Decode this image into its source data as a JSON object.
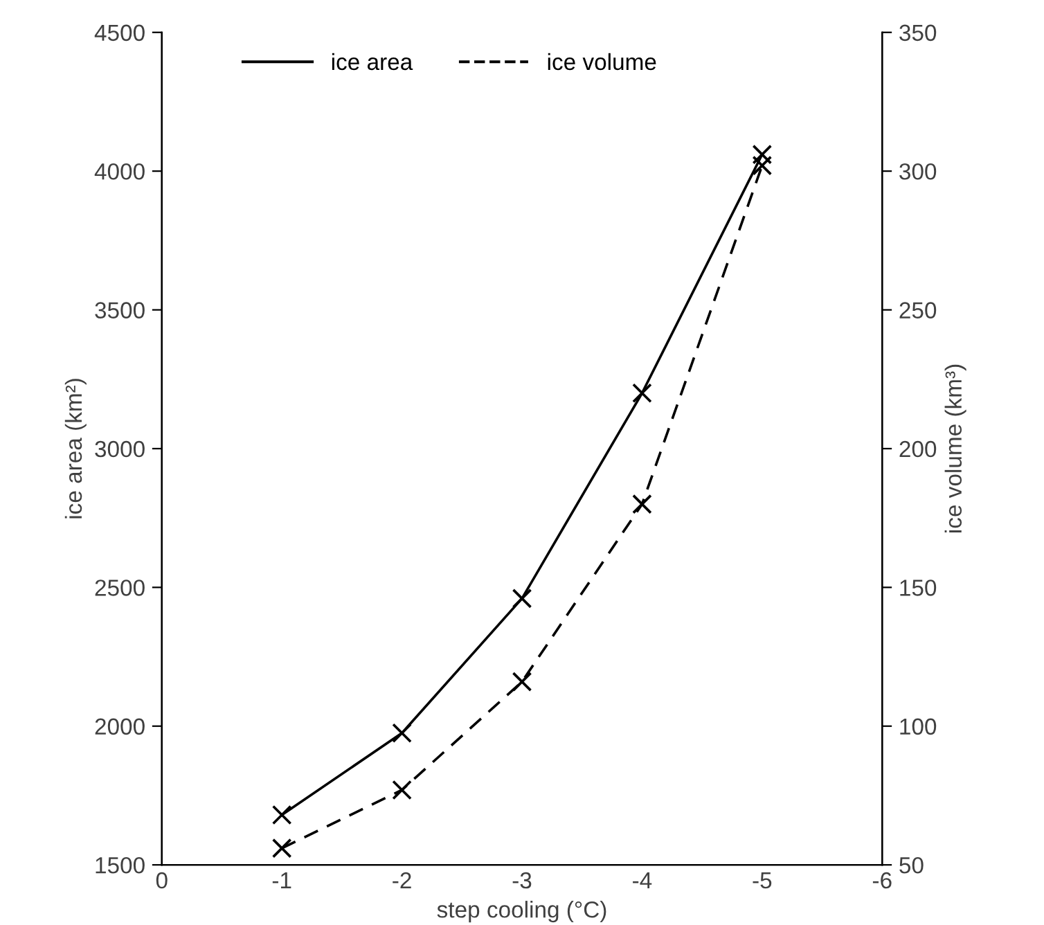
{
  "chart_data": {
    "type": "line",
    "xlabel": "step cooling (°C)",
    "ylabel": "ice area (km²)",
    "y2label": "ice volume (km³)",
    "x": [
      -1,
      -2,
      -3,
      -4,
      -5
    ],
    "series": [
      {
        "name": "ice area",
        "color": "#000000",
        "values": [
          1680,
          1975,
          2460,
          3200,
          4060
        ],
        "line_style": "solid"
      },
      {
        "name": "ice volume",
        "color": "#000000",
        "values": [
          56,
          77,
          116,
          180,
          302
        ],
        "line_style": "dashed",
        "axis": "y2"
      }
    ],
    "xlim": [
      0,
      -6
    ],
    "xticks": [
      0,
      -1,
      -2,
      -3,
      -4,
      -5,
      -6
    ],
    "ylim": [
      1500,
      4500
    ],
    "yticks": [
      1500,
      2000,
      2500,
      3000,
      3500,
      4000,
      4500
    ],
    "y2lim": [
      50,
      350
    ],
    "y2ticks": [
      50,
      100,
      150,
      200,
      250,
      300,
      350
    ],
    "marker": "cross",
    "grid": false,
    "legend": "top"
  }
}
